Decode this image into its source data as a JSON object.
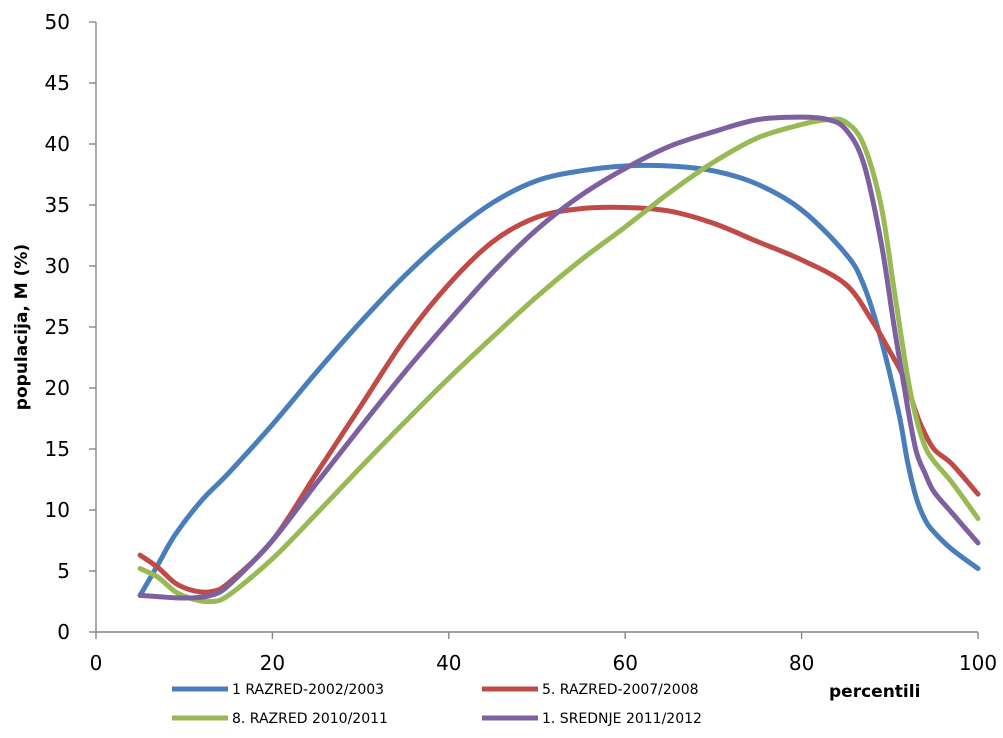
{
  "chart_data": {
    "type": "line",
    "title": "",
    "xlabel": "percentili",
    "ylabel": "populacija,  M (%)",
    "xlim": [
      0,
      100
    ],
    "ylim": [
      0,
      50
    ],
    "x_ticks": [
      "0",
      "20",
      "40",
      "60",
      "80",
      "100"
    ],
    "y_ticks": [
      "0",
      "5",
      "10",
      "15",
      "20",
      "25",
      "30",
      "35",
      "40",
      "45",
      "50"
    ],
    "grid": false,
    "legend_position": "bottom",
    "series": [
      {
        "name": "1 RAZRED-2002/2003",
        "color": "#4a7ebb",
        "x": [
          5,
          7,
          9,
          12,
          15,
          20,
          25,
          30,
          35,
          40,
          45,
          50,
          55,
          60,
          65,
          70,
          75,
          80,
          85,
          87,
          89,
          91,
          92,
          93,
          94,
          95,
          97,
          100
        ],
        "values": [
          3.0,
          5.5,
          8.0,
          10.8,
          13.0,
          17.0,
          21.3,
          25.4,
          29.2,
          32.5,
          35.2,
          37.0,
          37.8,
          38.2,
          38.2,
          37.8,
          36.7,
          34.6,
          31.0,
          28.5,
          24.0,
          18.0,
          14.0,
          11.0,
          9.2,
          8.2,
          6.8,
          5.2
        ]
      },
      {
        "name": "5. RAZRED-2007/2008",
        "color": "#be4b48",
        "x": [
          5,
          7,
          9,
          11,
          13,
          15,
          20,
          25,
          30,
          35,
          40,
          45,
          50,
          55,
          60,
          65,
          70,
          75,
          80,
          85,
          88,
          90,
          91.5,
          92.5,
          93.5,
          95,
          97,
          100
        ],
        "values": [
          6.3,
          5.3,
          4.0,
          3.4,
          3.3,
          4.0,
          7.5,
          13.0,
          18.5,
          24.0,
          28.5,
          32.0,
          34.0,
          34.7,
          34.8,
          34.5,
          33.5,
          32.0,
          30.5,
          28.5,
          25.5,
          23.0,
          21.0,
          19.0,
          17.0,
          15.0,
          13.8,
          11.3
        ]
      },
      {
        "name": "8. RAZRED 2010/2011",
        "color": "#98b954",
        "x": [
          5,
          7,
          9,
          11,
          13,
          15,
          20,
          25,
          30,
          35,
          40,
          45,
          50,
          55,
          60,
          65,
          70,
          75,
          80,
          83,
          85,
          87,
          89,
          90.5,
          92,
          93,
          94,
          95,
          97,
          100
        ],
        "values": [
          5.2,
          4.5,
          3.3,
          2.7,
          2.5,
          3.0,
          6.0,
          9.7,
          13.5,
          17.2,
          20.8,
          24.2,
          27.5,
          30.5,
          33.2,
          36.0,
          38.5,
          40.5,
          41.6,
          42.0,
          41.8,
          40.0,
          35.0,
          28.0,
          21.0,
          17.5,
          15.2,
          14.0,
          12.3,
          9.3
        ]
      },
      {
        "name": "1. SREDNJE 2011/2012",
        "color": "#7d60a0",
        "x": [
          5,
          7,
          9,
          11,
          13,
          15,
          20,
          25,
          30,
          35,
          40,
          45,
          50,
          55,
          60,
          65,
          70,
          75,
          80,
          83,
          85,
          87,
          89,
          90.5,
          92,
          93,
          94,
          95,
          97,
          100
        ],
        "values": [
          3.0,
          2.9,
          2.8,
          2.8,
          3.0,
          3.8,
          7.5,
          12.2,
          16.8,
          21.3,
          25.5,
          29.5,
          33.0,
          35.8,
          38.0,
          39.8,
          41.0,
          42.0,
          42.2,
          42.0,
          41.2,
          38.5,
          32.0,
          25.0,
          18.5,
          14.8,
          13.0,
          11.5,
          9.8,
          7.3
        ]
      }
    ]
  }
}
